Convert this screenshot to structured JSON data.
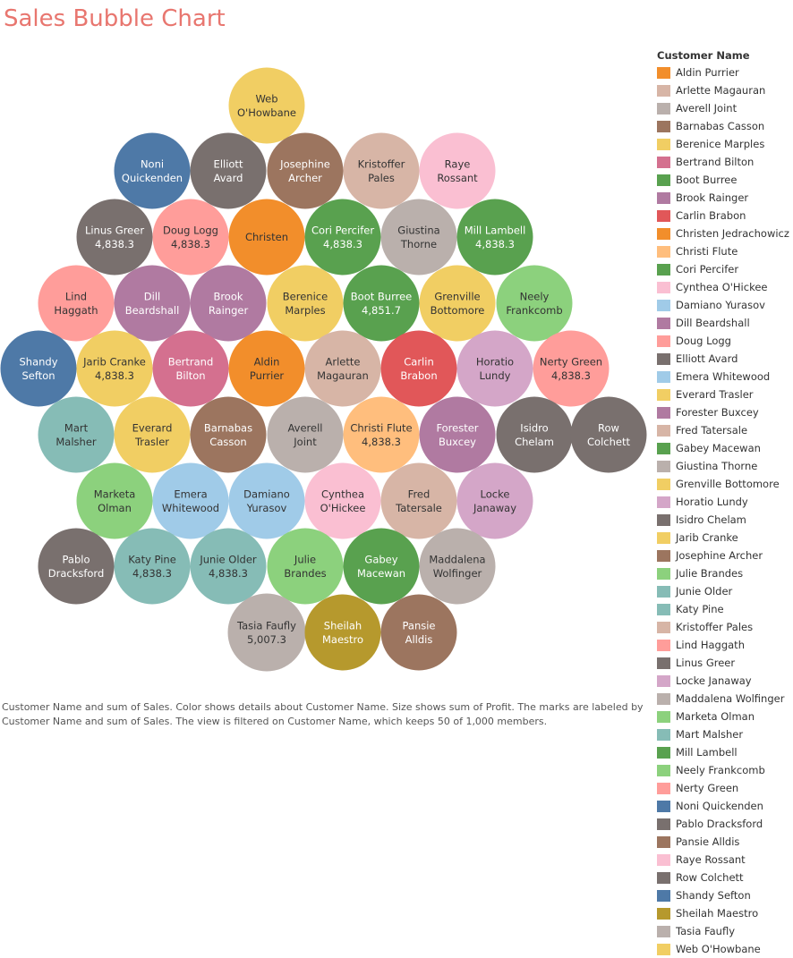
{
  "title": "Sales Bubble Chart",
  "caption": "Customer Name and sum of Sales.  Color shows details about Customer Name.  Size shows sum of Profit.  The marks are labeled by Customer Name and sum of Sales. The view is filtered on Customer Name, which keeps 50 of 1,000 members.",
  "legend": {
    "title": "Customer Name",
    "items": [
      {
        "name": "Aldin Purrier",
        "color": "#f28e2b"
      },
      {
        "name": "Arlette Magauran",
        "color": "#d7b5a6"
      },
      {
        "name": "Averell Joint",
        "color": "#bab0ac"
      },
      {
        "name": "Barnabas Casson",
        "color": "#9c755f"
      },
      {
        "name": "Berenice Marples",
        "color": "#f1ce63"
      },
      {
        "name": "Bertrand Bilton",
        "color": "#d4708f"
      },
      {
        "name": "Boot Burree",
        "color": "#59a14f"
      },
      {
        "name": "Brook Rainger",
        "color": "#b07aa1"
      },
      {
        "name": "Carlin Brabon",
        "color": "#e15759"
      },
      {
        "name": "Christen Jedrachowicz",
        "color": "#f28e2b"
      },
      {
        "name": "Christi Flute",
        "color": "#ffbe7d"
      },
      {
        "name": "Cori Percifer",
        "color": "#59a14f"
      },
      {
        "name": "Cynthea O'Hickee",
        "color": "#fabfd2"
      },
      {
        "name": "Damiano Yurasov",
        "color": "#a0cbe8"
      },
      {
        "name": "Dill Beardshall",
        "color": "#b07aa1"
      },
      {
        "name": "Doug Logg",
        "color": "#ff9d9a"
      },
      {
        "name": "Elliott Avard",
        "color": "#79706e"
      },
      {
        "name": "Emera Whitewood",
        "color": "#a0cbe8"
      },
      {
        "name": "Everard Trasler",
        "color": "#f1ce63"
      },
      {
        "name": "Forester Buxcey",
        "color": "#b07aa1"
      },
      {
        "name": "Fred Tatersale",
        "color": "#d7b5a6"
      },
      {
        "name": "Gabey Macewan",
        "color": "#59a14f"
      },
      {
        "name": "Giustina Thorne",
        "color": "#bab0ac"
      },
      {
        "name": "Grenville Bottomore",
        "color": "#f1ce63"
      },
      {
        "name": "Horatio Lundy",
        "color": "#d4a6c8"
      },
      {
        "name": "Isidro Chelam",
        "color": "#79706e"
      },
      {
        "name": "Jarib Cranke",
        "color": "#f1ce63"
      },
      {
        "name": "Josephine Archer",
        "color": "#9c755f"
      },
      {
        "name": "Julie Brandes",
        "color": "#8cd17d"
      },
      {
        "name": "Junie Older",
        "color": "#86bcb6"
      },
      {
        "name": "Katy Pine",
        "color": "#86bcb6"
      },
      {
        "name": "Kristoffer Pales",
        "color": "#d7b5a6"
      },
      {
        "name": "Lind Haggath",
        "color": "#ff9d9a"
      },
      {
        "name": "Linus Greer",
        "color": "#79706e"
      },
      {
        "name": "Locke Janaway",
        "color": "#d4a6c8"
      },
      {
        "name": "Maddalena Wolfinger",
        "color": "#bab0ac"
      },
      {
        "name": "Marketa Olman",
        "color": "#8cd17d"
      },
      {
        "name": "Mart Malsher",
        "color": "#86bcb6"
      },
      {
        "name": "Mill Lambell",
        "color": "#59a14f"
      },
      {
        "name": "Neely Frankcomb",
        "color": "#8cd17d"
      },
      {
        "name": "Nerty Green",
        "color": "#ff9d9a"
      },
      {
        "name": "Noni Quickenden",
        "color": "#4e79a7"
      },
      {
        "name": "Pablo Dracksford",
        "color": "#79706e"
      },
      {
        "name": "Pansie Alldis",
        "color": "#9c755f"
      },
      {
        "name": "Raye Rossant",
        "color": "#fabfd2"
      },
      {
        "name": "Row Colchett",
        "color": "#79706e"
      },
      {
        "name": "Shandy Sefton",
        "color": "#4e79a7"
      },
      {
        "name": "Sheilah Maestro",
        "color": "#b6992d"
      },
      {
        "name": "Tasia Faufly",
        "color": "#bab0ac"
      },
      {
        "name": "Web O'Howbane",
        "color": "#f1ce63"
      }
    ]
  },
  "chart_data": {
    "type": "bubble",
    "title": "Sales Bubble Chart",
    "bubbles": [
      {
        "lines": [
          "Web",
          "O'Howbane"
        ],
        "color": "#f1ce63",
        "text": "#333333"
      },
      {
        "lines": [
          "Noni",
          "Quickenden"
        ],
        "color": "#4e79a7",
        "text": "#ffffff"
      },
      {
        "lines": [
          "Elliott",
          "Avard"
        ],
        "color": "#79706e",
        "text": "#ffffff"
      },
      {
        "lines": [
          "Josephine",
          "Archer"
        ],
        "color": "#9c755f",
        "text": "#ffffff"
      },
      {
        "lines": [
          "Kristoffer",
          "Pales"
        ],
        "color": "#d7b5a6",
        "text": "#333333"
      },
      {
        "lines": [
          "Raye",
          "Rossant"
        ],
        "color": "#fabfd2",
        "text": "#333333"
      },
      {
        "lines": [
          "Linus Greer",
          "4,838.3"
        ],
        "color": "#79706e",
        "text": "#ffffff"
      },
      {
        "lines": [
          "Doug Logg",
          "4,838.3"
        ],
        "color": "#ff9d9a",
        "text": "#333333"
      },
      {
        "lines": [
          "Christen"
        ],
        "color": "#f28e2b",
        "text": "#333333"
      },
      {
        "lines": [
          "Cori Percifer",
          "4,838.3"
        ],
        "color": "#59a14f",
        "text": "#ffffff"
      },
      {
        "lines": [
          "Giustina",
          "Thorne"
        ],
        "color": "#bab0ac",
        "text": "#333333"
      },
      {
        "lines": [
          "Mill Lambell",
          "4,838.3"
        ],
        "color": "#59a14f",
        "text": "#ffffff"
      },
      {
        "lines": [
          "Lind",
          "Haggath"
        ],
        "color": "#ff9d9a",
        "text": "#333333"
      },
      {
        "lines": [
          "Dill",
          "Beardshall"
        ],
        "color": "#b07aa1",
        "text": "#ffffff"
      },
      {
        "lines": [
          "Brook",
          "Rainger"
        ],
        "color": "#b07aa1",
        "text": "#ffffff"
      },
      {
        "lines": [
          "Berenice",
          "Marples"
        ],
        "color": "#f1ce63",
        "text": "#333333"
      },
      {
        "lines": [
          "Boot Burree",
          "4,851.7"
        ],
        "color": "#59a14f",
        "text": "#ffffff"
      },
      {
        "lines": [
          "Grenville",
          "Bottomore"
        ],
        "color": "#f1ce63",
        "text": "#333333"
      },
      {
        "lines": [
          "Neely",
          "Frankcomb"
        ],
        "color": "#8cd17d",
        "text": "#333333"
      },
      {
        "lines": [
          "Shandy",
          "Sefton"
        ],
        "color": "#4e79a7",
        "text": "#ffffff"
      },
      {
        "lines": [
          "Jarib Cranke",
          "4,838.3"
        ],
        "color": "#f1ce63",
        "text": "#333333"
      },
      {
        "lines": [
          "Bertrand",
          "Bilton"
        ],
        "color": "#d4708f",
        "text": "#ffffff"
      },
      {
        "lines": [
          "Aldin",
          "Purrier"
        ],
        "color": "#f28e2b",
        "text": "#333333"
      },
      {
        "lines": [
          "Arlette",
          "Magauran"
        ],
        "color": "#d7b5a6",
        "text": "#333333"
      },
      {
        "lines": [
          "Carlin",
          "Brabon"
        ],
        "color": "#e15759",
        "text": "#ffffff"
      },
      {
        "lines": [
          "Horatio",
          "Lundy"
        ],
        "color": "#d4a6c8",
        "text": "#333333"
      },
      {
        "lines": [
          "Nerty Green",
          "4,838.3"
        ],
        "color": "#ff9d9a",
        "text": "#333333"
      },
      {
        "lines": [
          "Mart",
          "Malsher"
        ],
        "color": "#86bcb6",
        "text": "#333333"
      },
      {
        "lines": [
          "Everard",
          "Trasler"
        ],
        "color": "#f1ce63",
        "text": "#333333"
      },
      {
        "lines": [
          "Barnabas",
          "Casson"
        ],
        "color": "#9c755f",
        "text": "#ffffff"
      },
      {
        "lines": [
          "Averell",
          "Joint"
        ],
        "color": "#bab0ac",
        "text": "#333333"
      },
      {
        "lines": [
          "Christi Flute",
          "4,838.3"
        ],
        "color": "#ffbe7d",
        "text": "#333333"
      },
      {
        "lines": [
          "Forester",
          "Buxcey"
        ],
        "color": "#b07aa1",
        "text": "#ffffff"
      },
      {
        "lines": [
          "Isidro",
          "Chelam"
        ],
        "color": "#79706e",
        "text": "#ffffff"
      },
      {
        "lines": [
          "Row",
          "Colchett"
        ],
        "color": "#79706e",
        "text": "#ffffff"
      },
      {
        "lines": [
          "Marketa",
          "Olman"
        ],
        "color": "#8cd17d",
        "text": "#333333"
      },
      {
        "lines": [
          "Emera",
          "Whitewood"
        ],
        "color": "#a0cbe8",
        "text": "#333333"
      },
      {
        "lines": [
          "Damiano",
          "Yurasov"
        ],
        "color": "#a0cbe8",
        "text": "#333333"
      },
      {
        "lines": [
          "Cynthea",
          "O'Hickee"
        ],
        "color": "#fabfd2",
        "text": "#333333"
      },
      {
        "lines": [
          "Fred",
          "Tatersale"
        ],
        "color": "#d7b5a6",
        "text": "#333333"
      },
      {
        "lines": [
          "Locke",
          "Janaway"
        ],
        "color": "#d4a6c8",
        "text": "#333333"
      },
      {
        "lines": [
          "Pablo",
          "Dracksford"
        ],
        "color": "#79706e",
        "text": "#ffffff"
      },
      {
        "lines": [
          "Katy Pine",
          "4,838.3"
        ],
        "color": "#86bcb6",
        "text": "#333333"
      },
      {
        "lines": [
          "Junie Older",
          "4,838.3"
        ],
        "color": "#86bcb6",
        "text": "#333333"
      },
      {
        "lines": [
          "Julie",
          "Brandes"
        ],
        "color": "#8cd17d",
        "text": "#333333"
      },
      {
        "lines": [
          "Gabey",
          "Macewan"
        ],
        "color": "#59a14f",
        "text": "#ffffff"
      },
      {
        "lines": [
          "Maddalena",
          "Wolfinger"
        ],
        "color": "#bab0ac",
        "text": "#333333"
      },
      {
        "lines": [
          "Tasia Faufly",
          "5,007.3"
        ],
        "color": "#bab0ac",
        "text": "#333333"
      },
      {
        "lines": [
          "Sheilah",
          "Maestro"
        ],
        "color": "#b6992d",
        "text": "#ffffff"
      },
      {
        "lines": [
          "Pansie",
          "Alldis"
        ],
        "color": "#9c755f",
        "text": "#ffffff"
      }
    ]
  }
}
